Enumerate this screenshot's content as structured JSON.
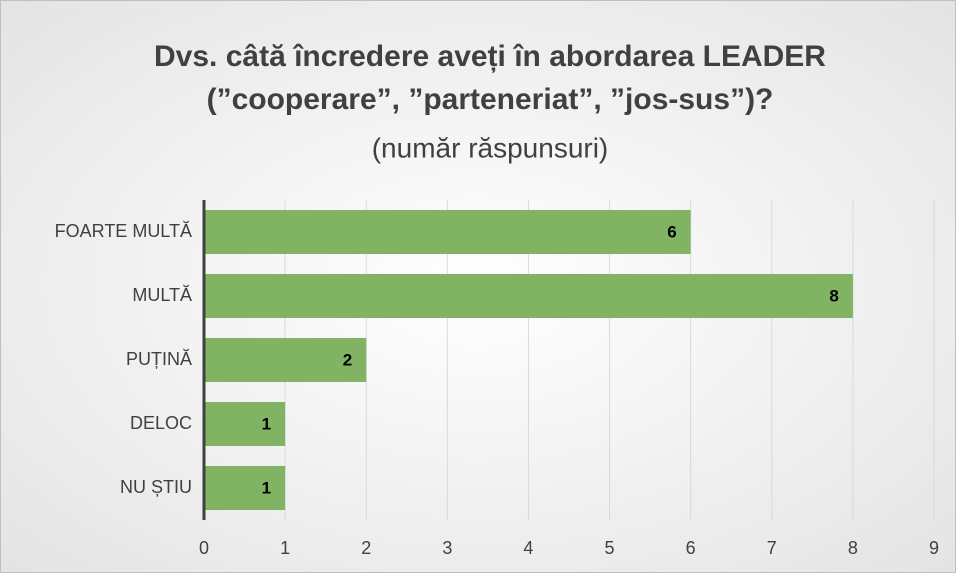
{
  "chart_data": {
    "type": "bar",
    "orientation": "horizontal",
    "title": [
      "Dvs. câtă încredere aveți în abordarea LEADER",
      "(”cooperare”, ”parteneriat”, ”jos-sus”)?"
    ],
    "subtitle": "(număr răspunsuri)",
    "categories": [
      "FOARTE MULTĂ",
      "MULTĂ",
      "PUȚINĂ",
      "DELOC",
      "NU ȘTIU"
    ],
    "values": [
      6,
      8,
      2,
      1,
      1
    ],
    "color": "#80b463",
    "xlim": [
      0,
      9
    ],
    "xticks": [
      0,
      1,
      2,
      3,
      4,
      5,
      6,
      7,
      8,
      9
    ],
    "grid": true
  }
}
